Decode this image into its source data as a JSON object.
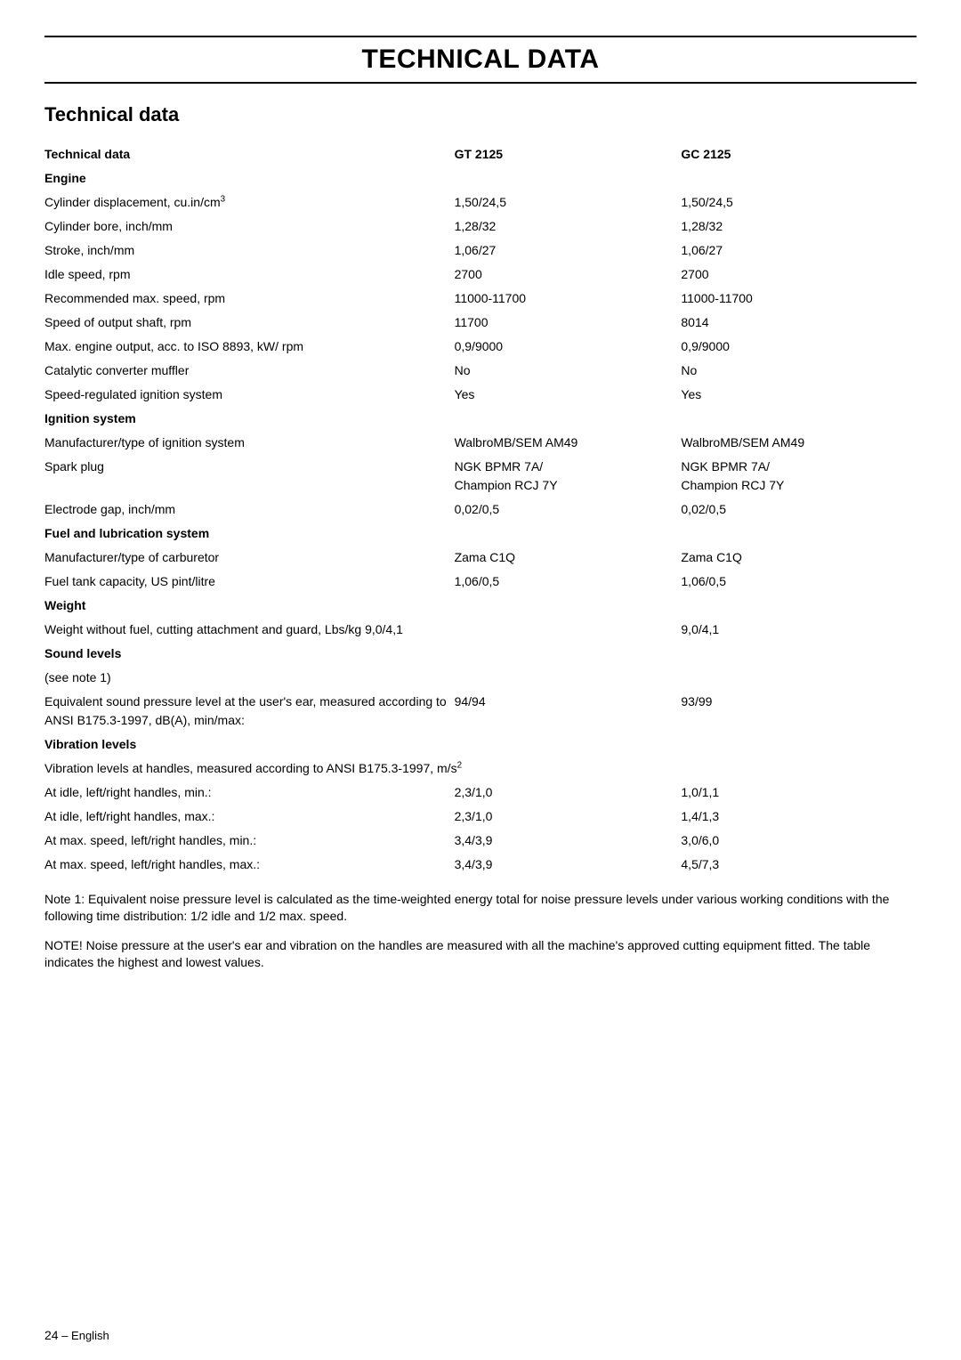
{
  "page": {
    "title": "TECHNICAL DATA",
    "section_title": "Technical data",
    "footer_page": "24",
    "footer_sep": " – ",
    "footer_lang": "English"
  },
  "table": {
    "headers": {
      "label": "Technical data",
      "c1": "GT 2125",
      "c2": "GC 2125"
    },
    "engine_header": "Engine",
    "rows_engine": [
      {
        "label": "Cylinder displacement, cu.in/cm",
        "sup": "3",
        "c1": "1,50/24,5",
        "c2": "1,50/24,5"
      },
      {
        "label": "Cylinder bore, inch/mm",
        "c1": "1,28/32",
        "c2": "1,28/32"
      },
      {
        "label": "Stroke, inch/mm",
        "c1": "1,06/27",
        "c2": "1,06/27"
      },
      {
        "label": "Idle speed, rpm",
        "c1": "2700",
        "c2": "2700"
      },
      {
        "label": "Recommended max. speed, rpm",
        "c1": "11000-11700",
        "c2": "11000-11700"
      },
      {
        "label": "Speed of output shaft, rpm",
        "c1": "11700",
        "c2": "8014"
      },
      {
        "label": "Max. engine output, acc. to ISO 8893, kW/ rpm",
        "c1": "0,9/9000",
        "c2": "0,9/9000"
      },
      {
        "label": "Catalytic converter muffler",
        "c1": "No",
        "c2": "No"
      },
      {
        "label": "Speed-regulated ignition system",
        "c1": "Yes",
        "c2": "Yes"
      }
    ],
    "ignition_header": "Ignition system",
    "rows_ignition": [
      {
        "label": "Manufacturer/type of ignition system",
        "c1": "WalbroMB/SEM AM49",
        "c2": "WalbroMB/SEM AM49"
      },
      {
        "label": "Spark plug",
        "c1": "NGK BPMR 7A/\nChampion RCJ 7Y",
        "c2": "NGK BPMR 7A/\nChampion RCJ 7Y"
      },
      {
        "label": "Electrode gap, inch/mm",
        "c1": "0,02/0,5",
        "c2": "0,02/0,5"
      }
    ],
    "fuel_header": "Fuel and lubrication system",
    "rows_fuel": [
      {
        "label": "Manufacturer/type of carburetor",
        "c1": "Zama C1Q",
        "c2": "Zama C1Q"
      },
      {
        "label": "Fuel tank capacity, US pint/litre",
        "c1": "1,06/0,5",
        "c2": "1,06/0,5"
      }
    ],
    "weight_header": "Weight",
    "rows_weight": [
      {
        "label": "Weight without fuel, cutting attachment and guard, Lbs/kg 9,0/4,1",
        "c1": "",
        "c2": "9,0/4,1"
      }
    ],
    "sound_header": "Sound levels",
    "sound_note": "(see note 1)",
    "rows_sound": [
      {
        "label": "Equivalent sound pressure level at the user's ear, measured according to ANSI  B175.3-1997, dB(A), min/max:",
        "c1": "94/94",
        "c2": "93/99"
      }
    ],
    "vibration_header": "Vibration levels",
    "vibration_subheader": {
      "label": "Vibration levels at handles, measured according to ANSI B175.3-1997, m/s",
      "sup": "2"
    },
    "rows_vibration": [
      {
        "label": "At idle, left/right handles, min.:",
        "c1": "2,3/1,0",
        "c2": "1,0/1,1"
      },
      {
        "label": "At idle, left/right handles, max.:",
        "c1": "2,3/1,0",
        "c2": "1,4/1,3"
      },
      {
        "label": "At max. speed, left/right handles, min.:",
        "c1": "3,4/3,9",
        "c2": "3,0/6,0"
      },
      {
        "label": "At max. speed, left/right handles, max.:",
        "c1": "3,4/3,9",
        "c2": "4,5/7,3"
      }
    ]
  },
  "notes": {
    "note1": "Note 1: Equivalent noise pressure level is calculated as the time-weighted energy total for noise pressure levels under various working conditions with the following time distribution: 1/2 idle and 1/2 max. speed.",
    "note2": "NOTE! Noise pressure at the user's ear and vibration on the handles are measured with all the machine's approved cutting equipment fitted. The table indicates the highest and lowest values."
  }
}
